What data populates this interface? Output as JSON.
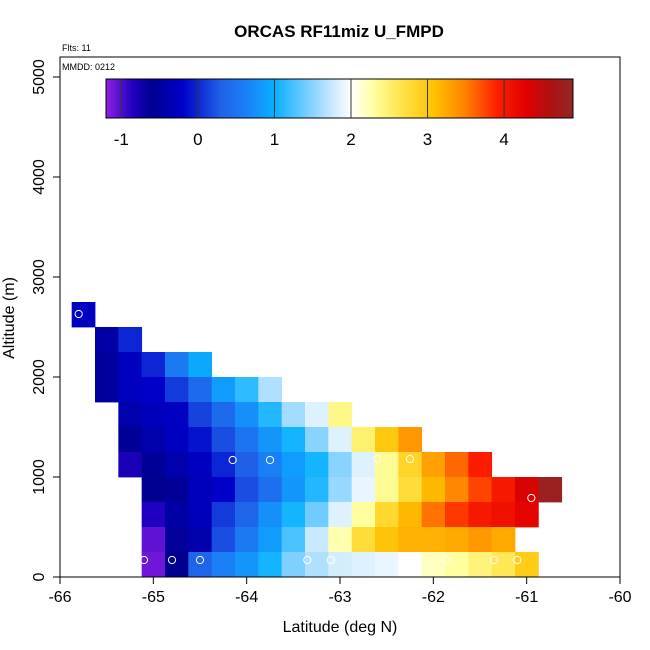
{
  "chart_data": {
    "type": "heatmap",
    "title": "ORCAS RF11miz U_FMPD",
    "annotations": [
      "Flts: 11",
      "MMDD: 0212"
    ],
    "xlabel": "Latitude (deg N)",
    "ylabel": "Altitude (m)",
    "xlim": [
      -66,
      -60
    ],
    "ylim": [
      0,
      5200
    ],
    "x_ticks": [
      -66,
      -65,
      -64,
      -63,
      -62,
      -61,
      -60
    ],
    "y_ticks": [
      0,
      1000,
      2000,
      3000,
      4000,
      5000
    ],
    "grid": false,
    "cell_width_deg": 0.25,
    "cell_height_m": 250,
    "colorbar": {
      "min": -1.2,
      "max": 4.9,
      "ticks": [
        -1,
        0,
        1,
        2,
        3,
        4
      ],
      "placement": "top",
      "stops": [
        {
          "v": -1.2,
          "c": "#9020e0"
        },
        {
          "v": -0.85,
          "c": "#2000c0"
        },
        {
          "v": -0.6,
          "c": "#000090"
        },
        {
          "v": -0.2,
          "c": "#0000c8"
        },
        {
          "v": 0.3,
          "c": "#2060e8"
        },
        {
          "v": 0.7,
          "c": "#1888f8"
        },
        {
          "v": 1.0,
          "c": "#08b0ff"
        },
        {
          "v": 1.4,
          "c": "#70ccff"
        },
        {
          "v": 1.75,
          "c": "#c8e8ff"
        },
        {
          "v": 2.0,
          "c": "#ffffff"
        },
        {
          "v": 2.3,
          "c": "#ffffa0"
        },
        {
          "v": 2.7,
          "c": "#ffe040"
        },
        {
          "v": 3.1,
          "c": "#ffc000"
        },
        {
          "v": 3.5,
          "c": "#ff8000"
        },
        {
          "v": 3.9,
          "c": "#ff2000"
        },
        {
          "v": 4.3,
          "c": "#e00000"
        },
        {
          "v": 4.6,
          "c": "#b01010"
        },
        {
          "v": 4.9,
          "c": "#902828"
        }
      ]
    },
    "cells": [
      {
        "lat": -65.75,
        "alt": 2625,
        "value": -0.25
      },
      {
        "lat": -65.5,
        "alt": 2375,
        "value": -0.45
      },
      {
        "lat": -65.25,
        "alt": 2375,
        "value": 0.0
      },
      {
        "lat": -65.5,
        "alt": 2125,
        "value": -0.5
      },
      {
        "lat": -65.25,
        "alt": 2125,
        "value": -0.25
      },
      {
        "lat": -65.0,
        "alt": 2125,
        "value": 0.0
      },
      {
        "lat": -64.75,
        "alt": 2125,
        "value": 0.55
      },
      {
        "lat": -64.5,
        "alt": 2125,
        "value": 0.95
      },
      {
        "lat": -65.5,
        "alt": 1875,
        "value": -0.5
      },
      {
        "lat": -65.25,
        "alt": 1875,
        "value": -0.25
      },
      {
        "lat": -65.0,
        "alt": 1875,
        "value": -0.2
      },
      {
        "lat": -64.75,
        "alt": 1875,
        "value": 0.1
      },
      {
        "lat": -64.5,
        "alt": 1875,
        "value": 0.4
      },
      {
        "lat": -64.25,
        "alt": 1875,
        "value": 0.85
      },
      {
        "lat": -64.0,
        "alt": 1875,
        "value": 1.15
      },
      {
        "lat": -63.75,
        "alt": 1875,
        "value": 1.65
      },
      {
        "lat": -65.25,
        "alt": 1625,
        "value": -0.4
      },
      {
        "lat": -65.0,
        "alt": 1625,
        "value": -0.3
      },
      {
        "lat": -64.75,
        "alt": 1625,
        "value": -0.25
      },
      {
        "lat": -64.5,
        "alt": 1625,
        "value": 0.15
      },
      {
        "lat": -64.25,
        "alt": 1625,
        "value": 0.4
      },
      {
        "lat": -64.0,
        "alt": 1625,
        "value": 0.75
      },
      {
        "lat": -63.75,
        "alt": 1625,
        "value": 1.1
      },
      {
        "lat": -63.5,
        "alt": 1625,
        "value": 1.6
      },
      {
        "lat": -63.25,
        "alt": 1625,
        "value": 1.85
      },
      {
        "lat": -63.0,
        "alt": 1625,
        "value": 2.4
      },
      {
        "lat": -65.25,
        "alt": 1375,
        "value": -0.55
      },
      {
        "lat": -65.0,
        "alt": 1375,
        "value": -0.4
      },
      {
        "lat": -64.75,
        "alt": 1375,
        "value": -0.25
      },
      {
        "lat": -64.5,
        "alt": 1375,
        "value": -0.1
      },
      {
        "lat": -64.25,
        "alt": 1375,
        "value": 0.2
      },
      {
        "lat": -64.0,
        "alt": 1375,
        "value": 0.5
      },
      {
        "lat": -63.75,
        "alt": 1375,
        "value": 0.8
      },
      {
        "lat": -63.5,
        "alt": 1375,
        "value": 1.05
      },
      {
        "lat": -63.25,
        "alt": 1375,
        "value": 1.5
      },
      {
        "lat": -63.0,
        "alt": 1375,
        "value": 1.85
      },
      {
        "lat": -62.75,
        "alt": 1375,
        "value": 2.5
      },
      {
        "lat": -62.5,
        "alt": 1375,
        "value": 3.0
      },
      {
        "lat": -62.25,
        "alt": 1375,
        "value": 3.35
      },
      {
        "lat": -65.25,
        "alt": 1125,
        "value": -0.8
      },
      {
        "lat": -65.0,
        "alt": 1125,
        "value": -0.55
      },
      {
        "lat": -64.75,
        "alt": 1125,
        "value": -0.4
      },
      {
        "lat": -64.5,
        "alt": 1125,
        "value": -0.25
      },
      {
        "lat": -64.25,
        "alt": 1125,
        "value": 0.0
      },
      {
        "lat": -64.0,
        "alt": 1125,
        "value": 0.3
      },
      {
        "lat": -63.75,
        "alt": 1125,
        "value": 0.6
      },
      {
        "lat": -63.5,
        "alt": 1125,
        "value": 0.85
      },
      {
        "lat": -63.25,
        "alt": 1125,
        "value": 1.05
      },
      {
        "lat": -63.0,
        "alt": 1125,
        "value": 1.5
      },
      {
        "lat": -62.75,
        "alt": 1125,
        "value": 1.85
      },
      {
        "lat": -62.5,
        "alt": 1125,
        "value": 2.35
      },
      {
        "lat": -62.25,
        "alt": 1125,
        "value": 2.85
      },
      {
        "lat": -62.0,
        "alt": 1125,
        "value": 3.3
      },
      {
        "lat": -61.75,
        "alt": 1125,
        "value": 3.6
      },
      {
        "lat": -61.5,
        "alt": 1125,
        "value": 3.95
      },
      {
        "lat": -65.0,
        "alt": 875,
        "value": -0.6
      },
      {
        "lat": -64.75,
        "alt": 875,
        "value": -0.55
      },
      {
        "lat": -64.5,
        "alt": 875,
        "value": -0.3
      },
      {
        "lat": -64.25,
        "alt": 875,
        "value": -0.2
      },
      {
        "lat": -64.0,
        "alt": 875,
        "value": 0.2
      },
      {
        "lat": -63.75,
        "alt": 875,
        "value": 0.45
      },
      {
        "lat": -63.5,
        "alt": 875,
        "value": 0.8
      },
      {
        "lat": -63.25,
        "alt": 875,
        "value": 1.1
      },
      {
        "lat": -63.0,
        "alt": 875,
        "value": 1.55
      },
      {
        "lat": -62.75,
        "alt": 875,
        "value": 1.9
      },
      {
        "lat": -62.5,
        "alt": 875,
        "value": 2.35
      },
      {
        "lat": -62.25,
        "alt": 875,
        "value": 2.75
      },
      {
        "lat": -62.0,
        "alt": 875,
        "value": 3.15
      },
      {
        "lat": -61.75,
        "alt": 875,
        "value": 3.45
      },
      {
        "lat": -61.5,
        "alt": 875,
        "value": 3.75
      },
      {
        "lat": -61.25,
        "alt": 875,
        "value": 4.0
      },
      {
        "lat": -61.0,
        "alt": 875,
        "value": 4.35
      },
      {
        "lat": -60.75,
        "alt": 875,
        "value": 4.8
      },
      {
        "lat": -65.0,
        "alt": 625,
        "value": -0.85
      },
      {
        "lat": -64.75,
        "alt": 625,
        "value": -0.45
      },
      {
        "lat": -64.5,
        "alt": 625,
        "value": -0.3
      },
      {
        "lat": -64.25,
        "alt": 625,
        "value": 0.1
      },
      {
        "lat": -64.0,
        "alt": 625,
        "value": 0.35
      },
      {
        "lat": -63.75,
        "alt": 625,
        "value": 0.75
      },
      {
        "lat": -63.5,
        "alt": 625,
        "value": 1.05
      },
      {
        "lat": -63.25,
        "alt": 625,
        "value": 1.4
      },
      {
        "lat": -63.0,
        "alt": 625,
        "value": 1.85
      },
      {
        "lat": -62.75,
        "alt": 625,
        "value": 2.3
      },
      {
        "lat": -62.5,
        "alt": 625,
        "value": 2.8
      },
      {
        "lat": -62.25,
        "alt": 625,
        "value": 3.15
      },
      {
        "lat": -62.0,
        "alt": 625,
        "value": 3.55
      },
      {
        "lat": -61.75,
        "alt": 625,
        "value": 3.8
      },
      {
        "lat": -61.5,
        "alt": 625,
        "value": 4.0
      },
      {
        "lat": -61.25,
        "alt": 625,
        "value": 4.1
      },
      {
        "lat": -61.0,
        "alt": 625,
        "value": 4.25
      },
      {
        "lat": -65.0,
        "alt": 375,
        "value": -1.05
      },
      {
        "lat": -64.75,
        "alt": 375,
        "value": -0.65
      },
      {
        "lat": -64.5,
        "alt": 375,
        "value": -0.4
      },
      {
        "lat": -64.25,
        "alt": 375,
        "value": 0.2
      },
      {
        "lat": -64.0,
        "alt": 375,
        "value": 0.55
      },
      {
        "lat": -63.75,
        "alt": 375,
        "value": 0.85
      },
      {
        "lat": -63.5,
        "alt": 375,
        "value": 1.25
      },
      {
        "lat": -63.25,
        "alt": 375,
        "value": 1.75
      },
      {
        "lat": -63.0,
        "alt": 375,
        "value": 2.25
      },
      {
        "lat": -62.75,
        "alt": 375,
        "value": 2.75
      },
      {
        "lat": -62.5,
        "alt": 375,
        "value": 3.05
      },
      {
        "lat": -62.25,
        "alt": 375,
        "value": 3.2
      },
      {
        "lat": -62.0,
        "alt": 375,
        "value": 3.2
      },
      {
        "lat": -61.75,
        "alt": 375,
        "value": 3.25
      },
      {
        "lat": -61.5,
        "alt": 375,
        "value": 3.35
      },
      {
        "lat": -61.25,
        "alt": 375,
        "value": 3.25
      },
      {
        "lat": -65.0,
        "alt": 125,
        "value": -1.1
      },
      {
        "lat": -64.75,
        "alt": 125,
        "value": -0.6
      },
      {
        "lat": -64.5,
        "alt": 125,
        "value": 0.35
      },
      {
        "lat": -64.25,
        "alt": 125,
        "value": 0.6
      },
      {
        "lat": -64.0,
        "alt": 125,
        "value": 0.8
      },
      {
        "lat": -63.75,
        "alt": 125,
        "value": 1.05
      },
      {
        "lat": -63.5,
        "alt": 125,
        "value": 1.45
      },
      {
        "lat": -63.25,
        "alt": 125,
        "value": 1.65
      },
      {
        "lat": -63.0,
        "alt": 125,
        "value": 1.8
      },
      {
        "lat": -62.75,
        "alt": 125,
        "value": 1.85
      },
      {
        "lat": -62.5,
        "alt": 125,
        "value": 1.9
      },
      {
        "lat": -62.25,
        "alt": 125,
        "value": 2.0
      },
      {
        "lat": -62.0,
        "alt": 125,
        "value": 2.2
      },
      {
        "lat": -61.75,
        "alt": 125,
        "value": 2.3
      },
      {
        "lat": -61.5,
        "alt": 125,
        "value": 2.45
      },
      {
        "lat": -61.25,
        "alt": 125,
        "value": 2.6
      },
      {
        "lat": -61.0,
        "alt": 125,
        "value": 2.95
      }
    ],
    "markers": [
      {
        "lat": -65.8,
        "alt": 2630
      },
      {
        "lat": -64.15,
        "alt": 1170
      },
      {
        "lat": -63.75,
        "alt": 1170
      },
      {
        "lat": -62.6,
        "alt": 1180
      },
      {
        "lat": -62.25,
        "alt": 1180
      },
      {
        "lat": -60.95,
        "alt": 790
      },
      {
        "lat": -65.1,
        "alt": 170
      },
      {
        "lat": -64.8,
        "alt": 170
      },
      {
        "lat": -64.5,
        "alt": 170
      },
      {
        "lat": -63.35,
        "alt": 170
      },
      {
        "lat": -63.1,
        "alt": 170
      },
      {
        "lat": -61.85,
        "alt": 170
      },
      {
        "lat": -61.35,
        "alt": 170
      },
      {
        "lat": -61.1,
        "alt": 170
      }
    ]
  }
}
